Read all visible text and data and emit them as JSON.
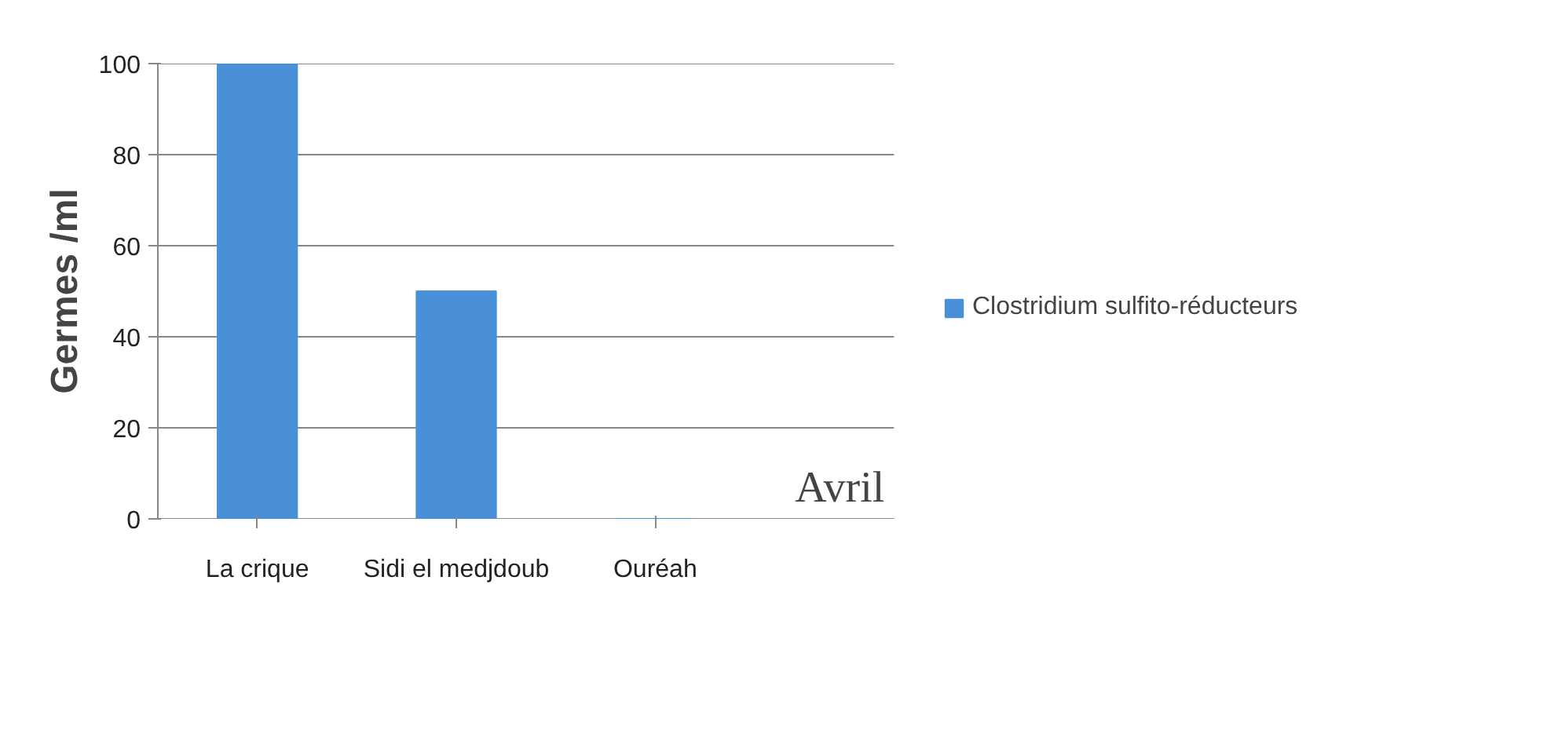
{
  "chart_data": {
    "type": "bar",
    "ylabel": "Germes /ml",
    "categories": [
      "La crique",
      "Sidi el medjdoub",
      "Ouréah"
    ],
    "series": [
      {
        "name": "Clostridium sulfito-réducteurs",
        "color": "#4a90d9",
        "values": [
          100,
          50,
          0
        ]
      }
    ],
    "ylim": [
      0,
      100
    ],
    "yticks": [
      0,
      20,
      40,
      60,
      80,
      100
    ],
    "grid": "y",
    "legend": "right",
    "annotations": [
      "Avril"
    ]
  }
}
